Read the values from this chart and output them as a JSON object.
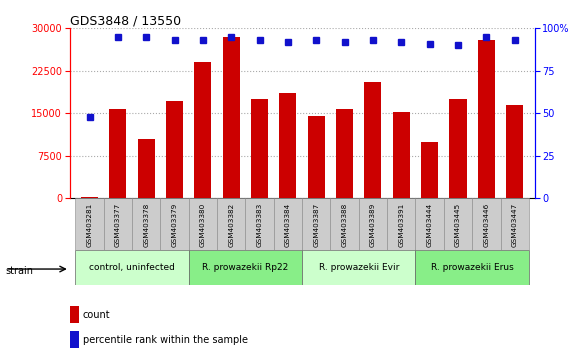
{
  "title": "GDS3848 / 13550",
  "categories": [
    "GSM403281",
    "GSM403377",
    "GSM403378",
    "GSM403379",
    "GSM403380",
    "GSM403382",
    "GSM403383",
    "GSM403384",
    "GSM403387",
    "GSM403388",
    "GSM403389",
    "GSM403391",
    "GSM403444",
    "GSM403445",
    "GSM403446",
    "GSM403447"
  ],
  "counts": [
    200,
    15800,
    10500,
    17200,
    24000,
    28500,
    17500,
    18500,
    14500,
    15700,
    20500,
    15200,
    10000,
    17500,
    28000,
    16500
  ],
  "percentile_ranks": [
    48,
    95,
    95,
    93,
    93,
    95,
    93,
    92,
    93,
    92,
    93,
    92,
    91,
    90,
    95,
    93
  ],
  "ylim_left": [
    0,
    30000
  ],
  "ylim_right": [
    0,
    100
  ],
  "yticks_left": [
    0,
    7500,
    15000,
    22500,
    30000
  ],
  "yticks_right": [
    0,
    25,
    50,
    75,
    100
  ],
  "yticklabels_right": [
    "0",
    "25",
    "50",
    "75",
    "100%"
  ],
  "bar_color": "#cc0000",
  "dot_color": "#1111cc",
  "groups": [
    {
      "label": "control, uninfected",
      "start": 0,
      "end": 3,
      "color": "#ccffcc"
    },
    {
      "label": "R. prowazekii Rp22",
      "start": 4,
      "end": 7,
      "color": "#88ee88"
    },
    {
      "label": "R. prowazekii Evir",
      "start": 8,
      "end": 11,
      "color": "#ccffcc"
    },
    {
      "label": "R. prowazekii Erus",
      "start": 12,
      "end": 15,
      "color": "#88ee88"
    }
  ],
  "strain_label": "strain",
  "legend_count_label": "count",
  "legend_percentile_label": "percentile rank within the sample",
  "tick_label_bg": "#cccccc",
  "fig_width": 5.81,
  "fig_height": 3.54,
  "dpi": 100
}
